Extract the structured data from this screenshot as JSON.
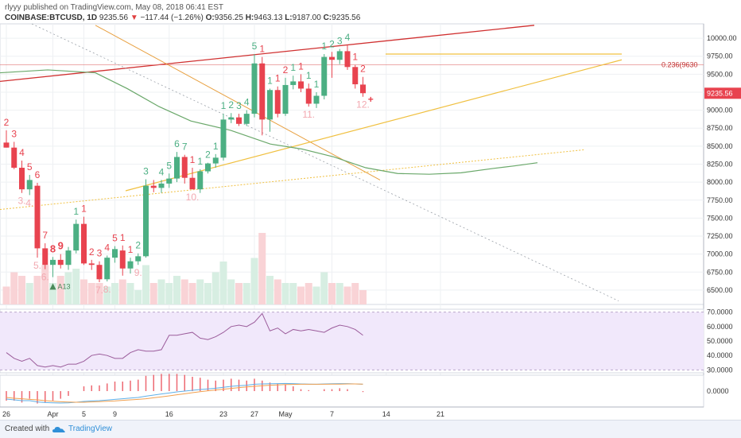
{
  "header": {
    "line1": "rlyyy published on TradingView.com, May 08, 2018 06:41 EST",
    "symbol": "COINBASE:BTCUSD, 1D",
    "last": "9235.56",
    "change_icon": "triangle-down-icon",
    "change": "−117.44 (−1.26%)",
    "o_label": "O:",
    "o": "9356.25",
    "h_label": "H:",
    "h": "9463.13",
    "l_label": "L:",
    "l": "9187.00",
    "c_label": "C:",
    "c": "9235.56"
  },
  "footer": {
    "created_with": "Created with",
    "brand": "TradingView",
    "logo_icon": "tradingview-cloud-icon"
  },
  "colors": {
    "up": "#4caf83",
    "down": "#e8434f",
    "up_volume": "#d7eee2",
    "down_volume": "#f9d3d6",
    "rsi_bg": "#f1e8fb",
    "rsi_line": "#9b5c9b",
    "ma_green": "#6aa86a",
    "yellow_trend": "#f0c040",
    "red_channel": "#d03030",
    "orange_line": "#e8a040",
    "fib_line": "#e07070"
  },
  "chart_data": {
    "type": "candlestick",
    "price_axis": {
      "ylim": [
        6300,
        10200
      ],
      "ticks": [
        "10000.00",
        "9750.00",
        "9500.00",
        "9250.00",
        "9000.00",
        "8750.00",
        "8500.00",
        "8250.00",
        "8000.00",
        "7750.00",
        "7500.00",
        "7250.00",
        "7000.00",
        "6750.00",
        "6500.00"
      ]
    },
    "last_price_label": "9235.56",
    "fib_label": "0.236(9630",
    "fib_level": 9630,
    "x_ticks": [
      {
        "label": "26",
        "i": 0
      },
      {
        "label": "Apr",
        "i": 6
      },
      {
        "label": "5",
        "i": 10
      },
      {
        "label": "9",
        "i": 14
      },
      {
        "label": "16",
        "i": 21
      },
      {
        "label": "23",
        "i": 28
      },
      {
        "label": "27",
        "i": 32
      },
      {
        "label": "May",
        "i": 36
      },
      {
        "label": "7",
        "i": 42
      },
      {
        "label": "14",
        "i": 49
      },
      {
        "label": "21",
        "i": 56
      }
    ],
    "candles": [
      {
        "o": 8550,
        "h": 8720,
        "l": 8480,
        "c": 8480
      },
      {
        "o": 8480,
        "h": 8560,
        "l": 8180,
        "c": 8200
      },
      {
        "o": 8200,
        "h": 8300,
        "l": 7850,
        "c": 7900
      },
      {
        "o": 7900,
        "h": 8100,
        "l": 7820,
        "c": 8030
      },
      {
        "o": 7950,
        "h": 7990,
        "l": 6950,
        "c": 7080
      },
      {
        "o": 7080,
        "h": 7150,
        "l": 6790,
        "c": 6850
      },
      {
        "o": 6850,
        "h": 6960,
        "l": 6680,
        "c": 6920
      },
      {
        "o": 6920,
        "h": 7000,
        "l": 6800,
        "c": 6850
      },
      {
        "o": 6850,
        "h": 7100,
        "l": 6780,
        "c": 7050
      },
      {
        "o": 7050,
        "h": 7480,
        "l": 7010,
        "c": 7420
      },
      {
        "o": 7420,
        "h": 7520,
        "l": 6850,
        "c": 6870
      },
      {
        "o": 6870,
        "h": 6920,
        "l": 6780,
        "c": 6850
      },
      {
        "o": 6850,
        "h": 6900,
        "l": 6610,
        "c": 6650
      },
      {
        "o": 6650,
        "h": 6980,
        "l": 6620,
        "c": 6950
      },
      {
        "o": 6950,
        "h": 7110,
        "l": 6880,
        "c": 7070
      },
      {
        "o": 7050,
        "h": 7120,
        "l": 6700,
        "c": 6800
      },
      {
        "o": 6800,
        "h": 6950,
        "l": 6730,
        "c": 6900
      },
      {
        "o": 6900,
        "h": 7010,
        "l": 6850,
        "c": 6970
      },
      {
        "o": 6970,
        "h": 8040,
        "l": 6950,
        "c": 7950
      },
      {
        "o": 7950,
        "h": 8030,
        "l": 7860,
        "c": 7920
      },
      {
        "o": 7920,
        "h": 8030,
        "l": 7850,
        "c": 7980
      },
      {
        "o": 7980,
        "h": 8120,
        "l": 7920,
        "c": 8050
      },
      {
        "o": 8050,
        "h": 8420,
        "l": 8000,
        "c": 8350
      },
      {
        "o": 8350,
        "h": 8380,
        "l": 7980,
        "c": 8060
      },
      {
        "o": 8060,
        "h": 8200,
        "l": 7900,
        "c": 7900
      },
      {
        "o": 7900,
        "h": 8180,
        "l": 7850,
        "c": 8150
      },
      {
        "o": 8150,
        "h": 8270,
        "l": 8120,
        "c": 8260
      },
      {
        "o": 8260,
        "h": 8390,
        "l": 8200,
        "c": 8340
      },
      {
        "o": 8340,
        "h": 8950,
        "l": 8300,
        "c": 8870
      },
      {
        "o": 8870,
        "h": 8960,
        "l": 8820,
        "c": 8900
      },
      {
        "o": 8900,
        "h": 8950,
        "l": 8780,
        "c": 8810
      },
      {
        "o": 8810,
        "h": 9000,
        "l": 8780,
        "c": 8950
      },
      {
        "o": 8950,
        "h": 9780,
        "l": 8900,
        "c": 9650
      },
      {
        "o": 9650,
        "h": 9740,
        "l": 8650,
        "c": 8870
      },
      {
        "o": 8870,
        "h": 9300,
        "l": 8700,
        "c": 9280
      },
      {
        "o": 9280,
        "h": 9330,
        "l": 8900,
        "c": 8950
      },
      {
        "o": 8950,
        "h": 9450,
        "l": 8920,
        "c": 9350
      },
      {
        "o": 9350,
        "h": 9480,
        "l": 9290,
        "c": 9400
      },
      {
        "o": 9400,
        "h": 9500,
        "l": 9250,
        "c": 9300
      },
      {
        "o": 9300,
        "h": 9370,
        "l": 9050,
        "c": 9090
      },
      {
        "o": 9090,
        "h": 9250,
        "l": 9030,
        "c": 9200
      },
      {
        "o": 9200,
        "h": 9780,
        "l": 9150,
        "c": 9740
      },
      {
        "o": 9740,
        "h": 9810,
        "l": 9450,
        "c": 9700
      },
      {
        "o": 9700,
        "h": 9850,
        "l": 9640,
        "c": 9820
      },
      {
        "o": 9820,
        "h": 9900,
        "l": 9560,
        "c": 9600
      },
      {
        "o": 9600,
        "h": 9630,
        "l": 9300,
        "c": 9360
      },
      {
        "o": 9356,
        "h": 9463,
        "l": 9187,
        "c": 9236
      }
    ],
    "candle_labels": [
      {
        "i": 0,
        "t": "2",
        "pos": "top",
        "kind": "down",
        "bold": false
      },
      {
        "i": 1,
        "t": "3",
        "pos": "top",
        "kind": "down",
        "bold": false
      },
      {
        "i": 2,
        "t": "4",
        "pos": "top",
        "kind": "down",
        "bold": false
      },
      {
        "i": 3,
        "t": "5",
        "pos": "top",
        "kind": "down",
        "bold": false
      },
      {
        "i": 4,
        "t": "6",
        "pos": "top",
        "kind": "down",
        "bold": false
      },
      {
        "i": 5,
        "t": "7",
        "pos": "top",
        "kind": "down",
        "bold": false
      },
      {
        "i": 6,
        "t": "8",
        "pos": "top",
        "kind": "down",
        "bold": true
      },
      {
        "i": 7,
        "t": "9",
        "pos": "top",
        "kind": "down",
        "bold": true
      },
      {
        "i": 9,
        "t": "1",
        "pos": "top",
        "kind": "up",
        "bold": false
      },
      {
        "i": 10,
        "t": "1",
        "pos": "top",
        "kind": "down",
        "bold": false
      },
      {
        "i": 11,
        "t": "2",
        "pos": "top",
        "kind": "down",
        "bold": false
      },
      {
        "i": 12,
        "t": "3",
        "pos": "top",
        "kind": "down",
        "bold": false
      },
      {
        "i": 13,
        "t": "4",
        "pos": "top",
        "kind": "down",
        "bold": false
      },
      {
        "i": 14,
        "t": "5",
        "pos": "top",
        "kind": "down",
        "bold": false
      },
      {
        "i": 15,
        "t": "1",
        "pos": "top",
        "kind": "down",
        "bold": false
      },
      {
        "i": 16,
        "t": "1",
        "pos": "top",
        "kind": "down",
        "bold": false
      },
      {
        "i": 17,
        "t": "2",
        "pos": "top",
        "kind": "up",
        "bold": false
      },
      {
        "i": 18,
        "t": "3",
        "pos": "top",
        "kind": "up",
        "bold": false
      },
      {
        "i": 20,
        "t": "4",
        "pos": "top",
        "kind": "up",
        "bold": false
      },
      {
        "i": 21,
        "t": "5",
        "pos": "top",
        "kind": "up",
        "bold": false
      },
      {
        "i": 22,
        "t": "6",
        "pos": "top",
        "kind": "up",
        "bold": false
      },
      {
        "i": 23,
        "t": "7",
        "pos": "top",
        "kind": "up",
        "bold": false
      },
      {
        "i": 24,
        "t": "1",
        "pos": "top",
        "kind": "down",
        "bold": false
      },
      {
        "i": 25,
        "t": "1",
        "pos": "top",
        "kind": "up",
        "bold": false
      },
      {
        "i": 26,
        "t": "2",
        "pos": "top",
        "kind": "up",
        "bold": false
      },
      {
        "i": 27,
        "t": "1",
        "pos": "top",
        "kind": "up",
        "bold": false
      },
      {
        "i": 28,
        "t": "1",
        "pos": "top",
        "kind": "up",
        "bold": false
      },
      {
        "i": 29,
        "t": "2",
        "pos": "top",
        "kind": "up",
        "bold": false
      },
      {
        "i": 30,
        "t": "3",
        "pos": "top",
        "kind": "up",
        "bold": false
      },
      {
        "i": 31,
        "t": "4",
        "pos": "top",
        "kind": "up",
        "bold": false
      },
      {
        "i": 32,
        "t": "5",
        "pos": "top",
        "kind": "up",
        "bold": false
      },
      {
        "i": 33,
        "t": "1",
        "pos": "top",
        "kind": "down",
        "bold": false
      },
      {
        "i": 34,
        "t": "1",
        "pos": "top",
        "kind": "up",
        "bold": false
      },
      {
        "i": 35,
        "t": "1",
        "pos": "top",
        "kind": "down",
        "bold": false
      },
      {
        "i": 36,
        "t": "2",
        "pos": "top",
        "kind": "down",
        "bold": false
      },
      {
        "i": 37,
        "t": "1",
        "pos": "top",
        "kind": "up",
        "bold": false
      },
      {
        "i": 38,
        "t": "1",
        "pos": "top",
        "kind": "down",
        "bold": false
      },
      {
        "i": 39,
        "t": "1",
        "pos": "top",
        "kind": "up",
        "bold": false
      },
      {
        "i": 40,
        "t": "1",
        "pos": "top",
        "kind": "up",
        "bold": false
      },
      {
        "i": 41,
        "t": "1",
        "pos": "top",
        "kind": "up",
        "bold": false
      },
      {
        "i": 42,
        "t": "2",
        "pos": "top",
        "kind": "up",
        "bold": false
      },
      {
        "i": 43,
        "t": "3",
        "pos": "top",
        "kind": "up",
        "bold": false
      },
      {
        "i": 44,
        "t": "4",
        "pos": "top",
        "kind": "up",
        "bold": false
      },
      {
        "i": 45,
        "t": "1",
        "pos": "top",
        "kind": "down",
        "bold": false
      },
      {
        "i": 46,
        "t": "2",
        "pos": "top",
        "kind": "down",
        "bold": false
      },
      {
        "i": 2,
        "t": "3.",
        "pos": "bottom",
        "kind": "faint",
        "bold": false
      },
      {
        "i": 3,
        "t": "4.",
        "pos": "bottom",
        "kind": "faint",
        "bold": false
      },
      {
        "i": 4,
        "t": "5.",
        "pos": "bottom",
        "kind": "faint",
        "bold": false
      },
      {
        "i": 5,
        "t": "6.",
        "pos": "bottom",
        "kind": "faint",
        "bold": false
      },
      {
        "i": 12,
        "t": "7.",
        "pos": "bottom",
        "kind": "faint",
        "bold": false
      },
      {
        "i": 13,
        "t": "8.",
        "pos": "bottom",
        "kind": "faint",
        "bold": false
      },
      {
        "i": 17,
        "t": "9.",
        "pos": "bottom",
        "kind": "faint",
        "bold": false
      },
      {
        "i": 24,
        "t": "10.",
        "pos": "bottom",
        "kind": "faint",
        "bold": false
      },
      {
        "i": 39,
        "t": "11.",
        "pos": "bottom",
        "kind": "faint",
        "bold": false
      },
      {
        "i": 46,
        "t": "12.",
        "pos": "bottom",
        "kind": "faint",
        "bold": false
      }
    ],
    "marker_a13": {
      "i": 6,
      "t": "A13",
      "price": 6550
    },
    "plus_marker": {
      "i": 47,
      "price": 9150
    },
    "volume": [
      0.25,
      0.45,
      0.4,
      0.3,
      0.4,
      0.55,
      0.3,
      0.4,
      0.45,
      0.5,
      0.35,
      0.3,
      0.3,
      0.25,
      0.3,
      0.35,
      0.3,
      0.2,
      0.55,
      0.3,
      0.35,
      0.3,
      0.4,
      0.35,
      0.3,
      0.35,
      0.3,
      0.45,
      0.6,
      0.35,
      0.3,
      0.3,
      0.65,
      1.0,
      0.4,
      0.35,
      0.3,
      0.3,
      0.25,
      0.3,
      0.25,
      0.45,
      0.3,
      0.3,
      0.25,
      0.3,
      0.2
    ],
    "rsi": {
      "ticks": [
        "70.0000",
        "60.0000",
        "50.0000",
        "40.0000",
        "30.0000"
      ],
      "ylim": [
        28,
        72
      ],
      "overbought": 70,
      "oversold": 30,
      "values": [
        42,
        38,
        36,
        38,
        33,
        32,
        33,
        32,
        34,
        34,
        36,
        40,
        41,
        40,
        38,
        38,
        42,
        44,
        43,
        43,
        44,
        54,
        54,
        55,
        56,
        52,
        51,
        53,
        56,
        60,
        61,
        60,
        63,
        69,
        57,
        59,
        55,
        58,
        57,
        58,
        57,
        56,
        59,
        61,
        60,
        58,
        54
      ]
    },
    "macd": {
      "ticks": [
        "0.0000"
      ],
      "ylim": [
        -1,
        1
      ],
      "macd_line": [
        -0.5,
        -0.55,
        -0.6,
        -0.6,
        -0.68,
        -0.72,
        -0.74,
        -0.75,
        -0.74,
        -0.7,
        -0.65,
        -0.62,
        -0.6,
        -0.56,
        -0.52,
        -0.48,
        -0.44,
        -0.4,
        -0.32,
        -0.25,
        -0.18,
        -0.12,
        -0.05,
        0.0,
        0.05,
        0.1,
        0.14,
        0.18,
        0.24,
        0.3,
        0.34,
        0.37,
        0.43,
        0.45,
        0.46,
        0.47,
        0.48,
        0.47,
        0.45,
        0.44,
        0.43,
        0.45,
        0.46,
        0.47,
        0.47,
        0.45,
        0.43
      ],
      "signal_line": [
        -0.4,
        -0.45,
        -0.48,
        -0.52,
        -0.55,
        -0.6,
        -0.64,
        -0.67,
        -0.69,
        -0.7,
        -0.7,
        -0.68,
        -0.66,
        -0.64,
        -0.62,
        -0.58,
        -0.55,
        -0.52,
        -0.48,
        -0.42,
        -0.36,
        -0.3,
        -0.23,
        -0.17,
        -0.1,
        -0.04,
        0.02,
        0.07,
        0.12,
        0.17,
        0.22,
        0.26,
        0.3,
        0.34,
        0.37,
        0.39,
        0.41,
        0.42,
        0.43,
        0.43,
        0.43,
        0.43,
        0.44,
        0.44,
        0.45,
        0.45,
        0.44
      ]
    }
  }
}
